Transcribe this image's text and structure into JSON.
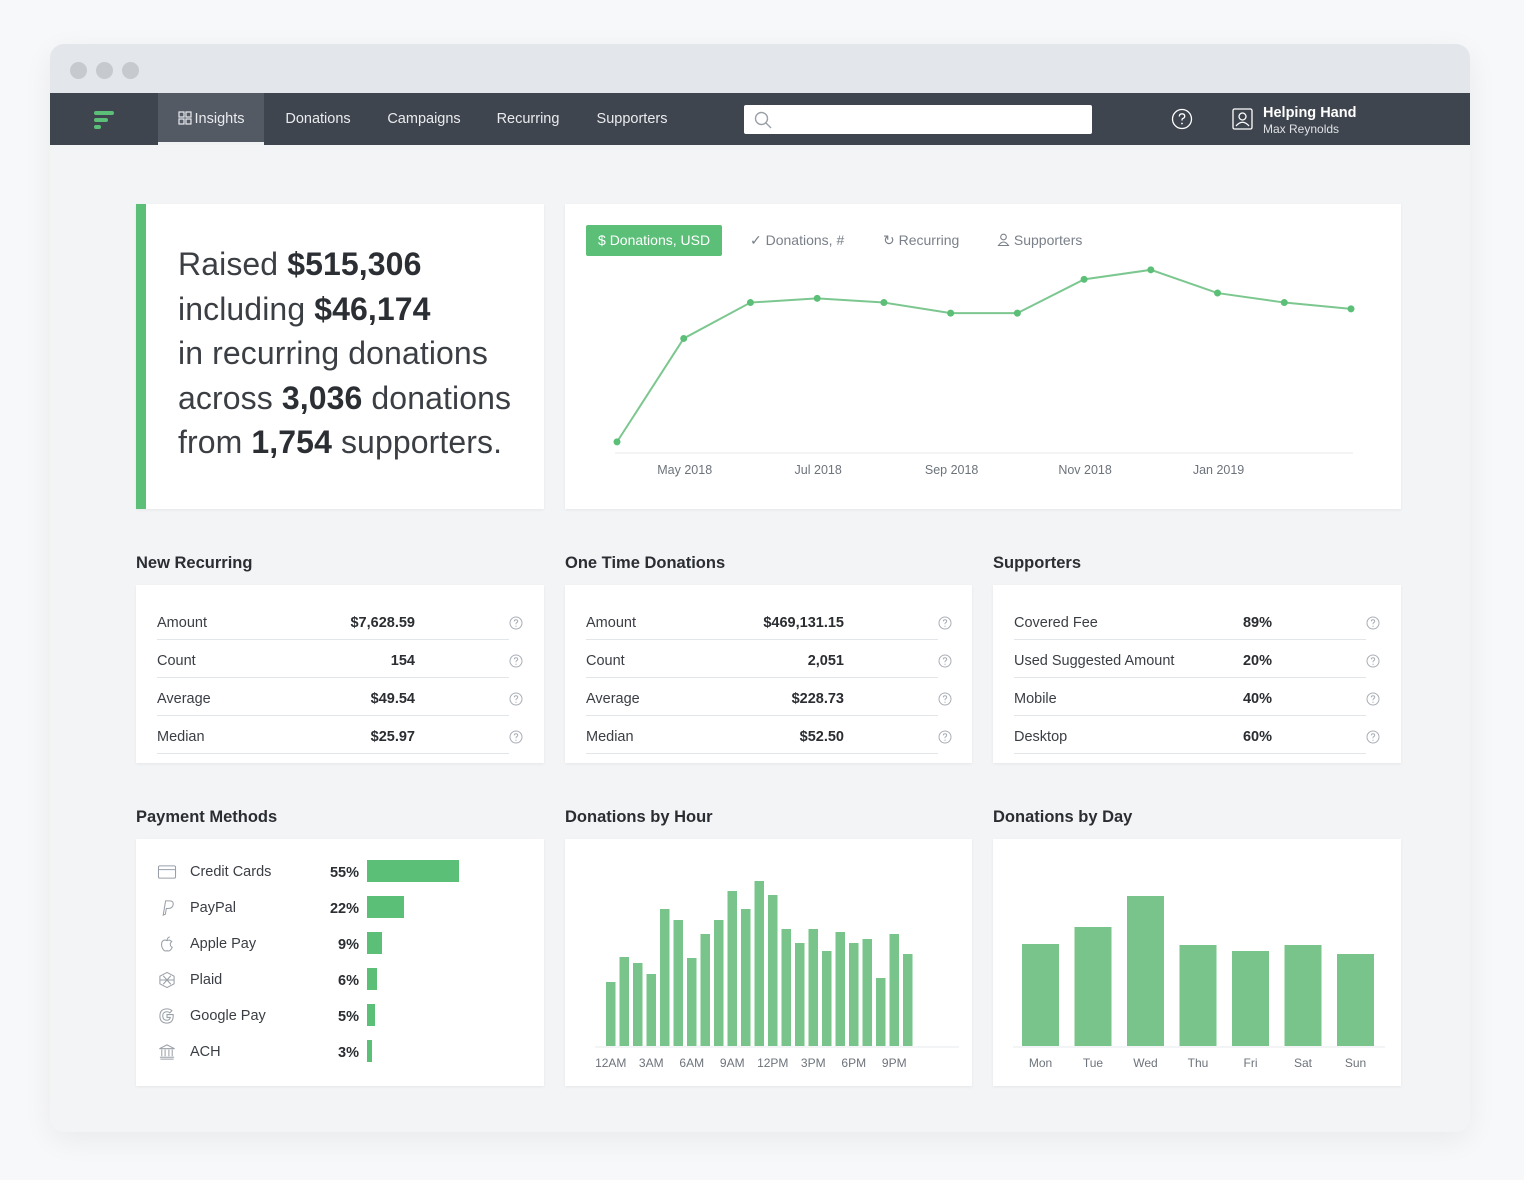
{
  "nav": {
    "tabs": [
      "Insights",
      "Donations",
      "Campaigns",
      "Recurring",
      "Supporters"
    ],
    "active_tab": "Insights",
    "search_placeholder": "",
    "org_name": "Helping Hand",
    "user_name": "Max Reynolds"
  },
  "summary": {
    "raised_prefix": "Raised ",
    "raised": "$515,306",
    "including_prefix": "including ",
    "recurring_amount": "$46,174",
    "line3": "in recurring donations",
    "across_prefix": "across ",
    "donation_count": "3,036",
    "across_suffix": " donations",
    "from_prefix": "from ",
    "supporter_count": "1,754",
    "from_suffix": " supporters."
  },
  "chart_tabs": [
    {
      "label": "Donations, USD",
      "icon": "dollar-icon"
    },
    {
      "label": "Donations, #",
      "icon": "check-icon"
    },
    {
      "label": "Recurring",
      "icon": "refresh-icon"
    },
    {
      "label": "Supporters",
      "icon": "user-icon"
    }
  ],
  "new_recurring": {
    "title": "New Recurring",
    "rows": [
      {
        "label": "Amount",
        "value": "$7,628.59"
      },
      {
        "label": "Count",
        "value": "154"
      },
      {
        "label": "Average",
        "value": "$49.54"
      },
      {
        "label": "Median",
        "value": "$25.97"
      }
    ]
  },
  "one_time": {
    "title": "One Time Donations",
    "rows": [
      {
        "label": "Amount",
        "value": "$469,131.15"
      },
      {
        "label": "Count",
        "value": "2,051"
      },
      {
        "label": "Average",
        "value": "$228.73"
      },
      {
        "label": "Median",
        "value": "$52.50"
      }
    ]
  },
  "supporters": {
    "title": "Supporters",
    "rows": [
      {
        "label": "Covered Fee",
        "value": "89%"
      },
      {
        "label": "Used Suggested Amount",
        "value": "20%"
      },
      {
        "label": "Mobile",
        "value": "40%"
      },
      {
        "label": "Desktop",
        "value": "60%"
      }
    ]
  },
  "payment_methods": {
    "title": "Payment Methods",
    "rows": [
      {
        "label": "Credit Cards",
        "value": "55%",
        "pct": 55,
        "icon": "credit-card-icon"
      },
      {
        "label": "PayPal",
        "value": "22%",
        "pct": 22,
        "icon": "paypal-icon"
      },
      {
        "label": "Apple Pay",
        "value": "9%",
        "pct": 9,
        "icon": "apple-icon"
      },
      {
        "label": "Plaid",
        "value": "6%",
        "pct": 6,
        "icon": "plaid-icon"
      },
      {
        "label": "Google Pay",
        "value": "5%",
        "pct": 5,
        "icon": "google-icon"
      },
      {
        "label": "ACH",
        "value": "3%",
        "pct": 3,
        "icon": "bank-icon"
      }
    ]
  },
  "donations_by_hour": {
    "title": "Donations by Hour"
  },
  "donations_by_day": {
    "title": "Donations by Day"
  },
  "colors": {
    "accent": "#5bbf77",
    "nav": "#3f454e",
    "bar": "#78c48a"
  },
  "chart_data": [
    {
      "type": "line",
      "x": [
        "2018-04",
        "2018-05",
        "2018-06",
        "2018-07",
        "2018-08",
        "2018-09",
        "2018-10",
        "2018-11",
        "2018-12",
        "2019-01",
        "2019-02",
        "2019-03"
      ],
      "x_tick_labels": [
        "May 2018",
        "Jul 2018",
        "Sep 2018",
        "Nov 2018",
        "Jan 2019"
      ],
      "x_tick_positions": [
        "2018-05",
        "2018-07",
        "2018-09",
        "2018-11",
        "2019-01"
      ],
      "values": [
        2,
        100,
        134,
        138,
        134,
        124,
        124,
        156,
        165,
        143,
        134,
        128
      ],
      "ylim": [
        0,
        180
      ],
      "grid": false
    },
    {
      "type": "bar",
      "categories": [
        "12AM",
        "1AM",
        "2AM",
        "3AM",
        "4AM",
        "5AM",
        "6AM",
        "7AM",
        "8AM",
        "9AM",
        "10AM",
        "11AM",
        "12PM",
        "1PM",
        "2PM",
        "3PM",
        "4PM",
        "5PM",
        "6PM",
        "7PM",
        "8PM",
        "9PM",
        "10PM",
        "11PM"
      ],
      "tick_labels": [
        "12AM",
        "3AM",
        "6AM",
        "9AM",
        "12PM",
        "3PM",
        "6PM",
        "9PM"
      ],
      "values": [
        64,
        89,
        83,
        72,
        137,
        126,
        88,
        112,
        126,
        155,
        137,
        165,
        151,
        117,
        103,
        117,
        95,
        114,
        103,
        107,
        68,
        112,
        92,
        0
      ],
      "ylim": [
        0,
        170
      ]
    },
    {
      "type": "bar",
      "categories": [
        "Mon",
        "Tue",
        "Wed",
        "Thu",
        "Fri",
        "Sat",
        "Sun"
      ],
      "values": [
        102,
        119,
        150,
        101,
        95,
        101,
        92
      ],
      "ylim": [
        0,
        160
      ]
    }
  ]
}
